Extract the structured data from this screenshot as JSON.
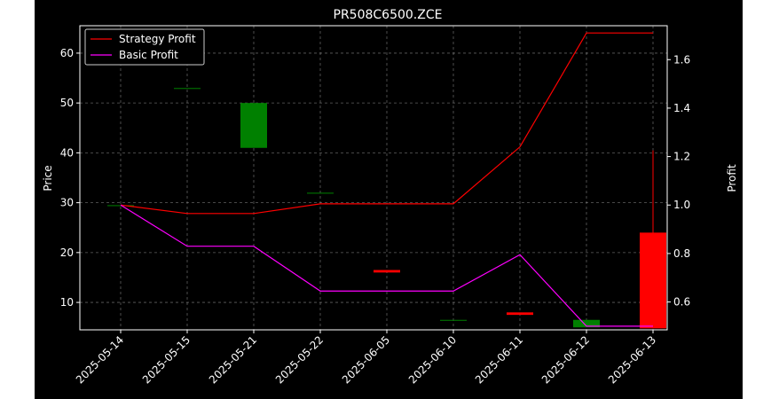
{
  "chart_data": {
    "type": "candlestick",
    "title": "PR508C6500.ZCE",
    "ylabel_left": "Price",
    "ylabel_right": "Profit",
    "ylim_left": [
      4.5,
      65.5
    ],
    "ylim_right": [
      0.485,
      1.74
    ],
    "left_ticks": [
      10,
      20,
      30,
      40,
      50,
      60
    ],
    "right_ticks": [
      0.6,
      0.8,
      1.0,
      1.2,
      1.4,
      1.6
    ],
    "categories": [
      "2025-05-14",
      "2025-05-15",
      "2025-05-21",
      "2025-05-22",
      "2025-06-05",
      "2025-06-10",
      "2025-06-11",
      "2025-06-12",
      "2025-06-13"
    ],
    "candles": [
      {
        "date": "2025-05-14",
        "open": 29.5,
        "high": 29.5,
        "low": 29.5,
        "close": 29.5
      },
      {
        "date": "2025-05-15",
        "open": 53.0,
        "high": 53.0,
        "low": 53.0,
        "close": 53.0
      },
      {
        "date": "2025-05-21",
        "open": 41.0,
        "high": 50.0,
        "low": 41.0,
        "close": 50.0
      },
      {
        "date": "2025-05-22",
        "open": 32.0,
        "high": 32.0,
        "low": 32.0,
        "close": 32.0
      },
      {
        "date": "2025-06-05",
        "open": 16.5,
        "high": 16.5,
        "low": 16.0,
        "close": 16.0
      },
      {
        "date": "2025-06-10",
        "open": 6.5,
        "high": 6.5,
        "low": 6.5,
        "close": 6.5
      },
      {
        "date": "2025-06-11",
        "open": 8.0,
        "high": 8.0,
        "low": 7.5,
        "close": 7.5
      },
      {
        "date": "2025-06-12",
        "open": 5.0,
        "high": 6.5,
        "low": 5.0,
        "close": 6.5
      },
      {
        "date": "2025-06-13",
        "open": 24.0,
        "high": 40.5,
        "low": 4.8,
        "close": 4.8
      }
    ],
    "series": [
      {
        "name": "Strategy Profit",
        "color": "#ff0000",
        "values": [
          1.0,
          0.965,
          0.965,
          1.005,
          1.005,
          1.005,
          1.24,
          1.71,
          1.71
        ]
      },
      {
        "name": "Basic Profit",
        "color": "#ff00ff",
        "values": [
          1.0,
          0.83,
          0.83,
          0.645,
          0.645,
          0.645,
          0.795,
          0.5,
          0.5
        ]
      }
    ],
    "up_color": "#008000",
    "down_color": "#ff0000",
    "background": "#000000",
    "grid": true,
    "legend_position": "top-left"
  }
}
